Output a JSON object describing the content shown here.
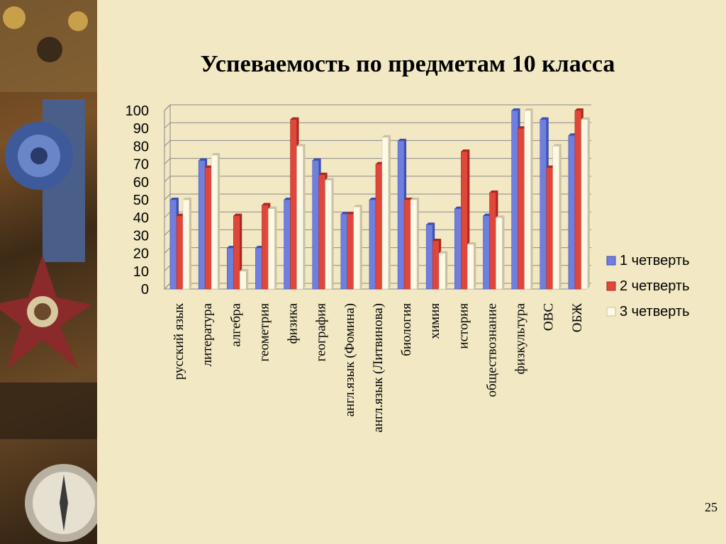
{
  "slide": {
    "title": "Успеваемость по предметам 10 класса",
    "page_number": "25"
  },
  "colors": {
    "background": "#f2e8c4",
    "series": [
      "#6f7fe0",
      "#e0473a",
      "#fdf9e6"
    ],
    "series_dark": [
      "#3f4fb0",
      "#a82a20",
      "#c9c2a4"
    ]
  },
  "chart_data": {
    "type": "bar",
    "title": "",
    "xlabel": "",
    "ylabel": "",
    "ylim": [
      0,
      100
    ],
    "yticks": [
      "0",
      "10",
      "20",
      "30",
      "40",
      "50",
      "60",
      "70",
      "80",
      "90",
      "100"
    ],
    "grid": true,
    "legend_position": "right",
    "categories": [
      "русский язык",
      "литература",
      "алгебра",
      "геометрия",
      "физика",
      "география",
      "англ.язык (Фомина)",
      "англ.язык (Литвинова)",
      "биология",
      "химия",
      "история",
      "обществознание",
      "физкультура",
      "ОВС",
      "ОБЖ"
    ],
    "series": [
      {
        "name": "1 четверть",
        "values": [
          50,
          72,
          23,
          23,
          50,
          72,
          42,
          50,
          83,
          36,
          45,
          41,
          100,
          95,
          86
        ]
      },
      {
        "name": "2 четверть",
        "values": [
          41,
          68,
          41,
          47,
          95,
          64,
          42,
          70,
          50,
          27,
          77,
          54,
          90,
          68,
          100
        ]
      },
      {
        "name": "3 четверть",
        "values": [
          50,
          75,
          10,
          45,
          80,
          61,
          46,
          85,
          50,
          20,
          25,
          40,
          100,
          80,
          95
        ]
      }
    ]
  }
}
